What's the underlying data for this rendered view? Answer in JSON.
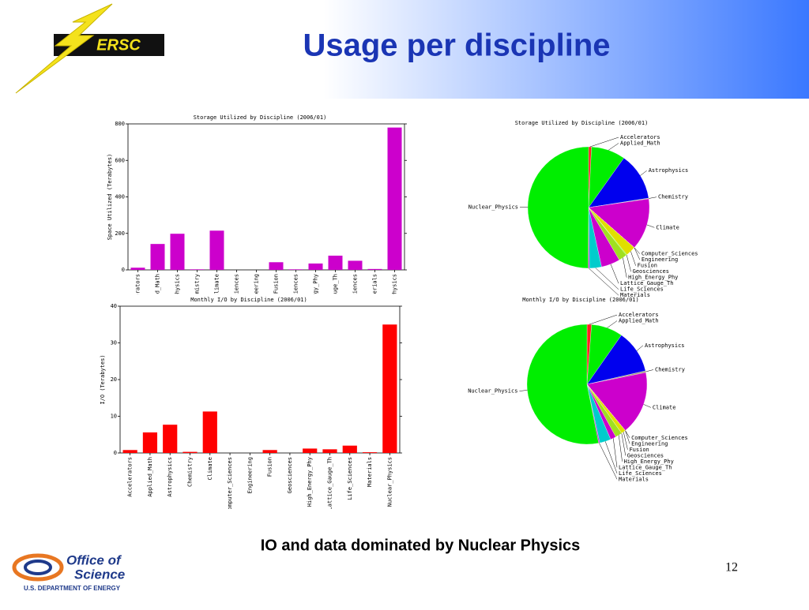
{
  "slide": {
    "title": "Usage per discipline",
    "caption": "IO and data dominated by Nuclear Physics",
    "page": "12",
    "logo_nersc": "ERSC",
    "logo_office": [
      "Office of",
      "Science"
    ],
    "logo_doe": "U.S. DEPARTMENT OF ENERGY"
  },
  "chart_data": [
    {
      "type": "bar",
      "title": "Storage Utilized by Discipline (2006/01)",
      "y_label": "Space Utilized (Terabytes)",
      "categories": [
        "Accelerators",
        "Applied_Math",
        "Astrophysics",
        "Chemistry",
        "Climate",
        "Computer_Sciences",
        "Engineering",
        "Fusion",
        "Geosciences",
        "High_Energy_Phy",
        "Lattice_Gauge_Th",
        "Life_Sciences",
        "Materials",
        "Nuclear_Physics"
      ],
      "values": [
        12,
        142,
        198,
        3,
        215,
        0,
        0,
        42,
        3,
        35,
        78,
        50,
        5,
        780
      ],
      "color": "#cc00cc",
      "ylim": [
        0,
        800
      ],
      "yticks": [
        0,
        200,
        400,
        600,
        800
      ]
    },
    {
      "type": "bar",
      "title": "Monthly I/O by Discipline (2006/01)",
      "y_label": "I/O (Terabytes)",
      "categories": [
        "Accelerators",
        "Applied_Math",
        "Astrophysics",
        "Chemistry",
        "Climate",
        "Computer_Sciences",
        "Engineering",
        "Fusion",
        "Geosciences",
        "High_Energy_Phy",
        "Lattice_Gauge_Th",
        "Life_Sciences",
        "Materials",
        "Nuclear_Physics"
      ],
      "values": [
        0.8,
        5.6,
        7.7,
        0.3,
        11.3,
        0,
        0,
        0.8,
        0,
        1.2,
        1.0,
        2.0,
        0.2,
        35
      ],
      "color": "#ff0000",
      "ylim": [
        0,
        40
      ],
      "yticks": [
        0,
        10,
        20,
        30,
        40
      ]
    },
    {
      "type": "pie",
      "title": "Storage Utilized by Discipline (2006/01)",
      "categories": [
        "Accelerators",
        "Applied_Math",
        "Astrophysics",
        "Chemistry",
        "Climate",
        "Computer_Sciences",
        "Engineering",
        "Fusion",
        "Geosciences",
        "High_Energy_Phy",
        "Lattice_Gauge_Th",
        "Life_Sciences",
        "Materials",
        "Nuclear_Physics"
      ],
      "values": [
        12,
        142,
        198,
        3,
        215,
        0,
        0,
        42,
        3,
        35,
        78,
        50,
        5,
        780
      ],
      "colors": [
        "#ff2020",
        "#00ee00",
        "#0000ee",
        "#a0a080",
        "#cc00cc",
        "#00ff80",
        "#00c0c0",
        "#e0e000",
        "#80ff00",
        "#a0e020",
        "#cc00cc",
        "#00cccc",
        "#e000e0",
        "#00ee00"
      ]
    },
    {
      "type": "pie",
      "title": "Monthly I/O by Discipline (2006/01)",
      "categories": [
        "Accelerators",
        "Applied_Math",
        "Astrophysics",
        "Chemistry",
        "Climate",
        "Computer_Sciences",
        "Engineering",
        "Fusion",
        "Geosciences",
        "High_Energy_Phy",
        "Lattice_Gauge_Th",
        "Life_Sciences",
        "Materials",
        "Nuclear_Physics"
      ],
      "values": [
        0.8,
        5.6,
        7.7,
        0.3,
        11.3,
        0,
        0,
        0.8,
        0,
        1.2,
        1.0,
        2.0,
        0.2,
        35
      ],
      "colors": [
        "#ff2020",
        "#00ee00",
        "#0000ee",
        "#a0a080",
        "#cc00cc",
        "#00ff80",
        "#00c0c0",
        "#e0e000",
        "#80ff00",
        "#a0e020",
        "#cc00cc",
        "#00cccc",
        "#e000e0",
        "#00ee00"
      ]
    }
  ]
}
